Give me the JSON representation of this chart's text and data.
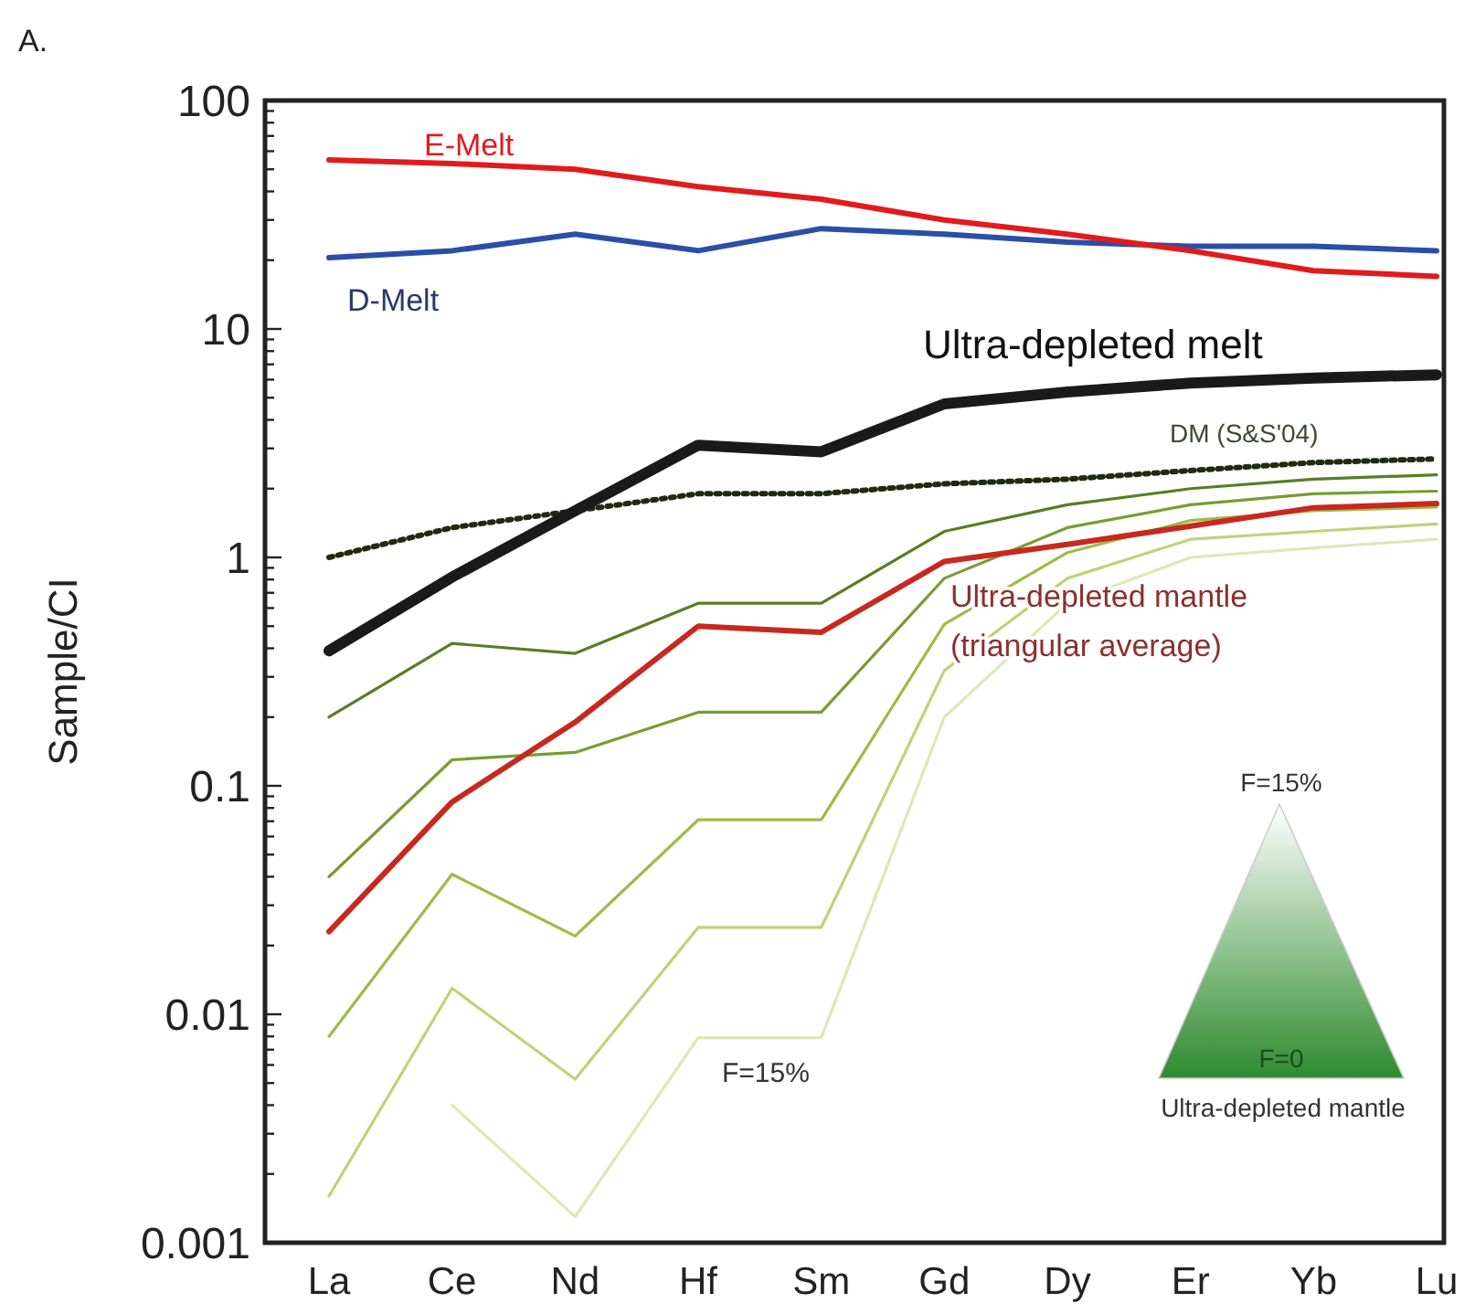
{
  "chart_data": {
    "type": "line",
    "title": "A.",
    "ylabel": "Sample/CI",
    "log": true,
    "categories": [
      "La",
      "Ce",
      "Nd",
      "Hf",
      "Sm",
      "Gd",
      "Dy",
      "Er",
      "Yb",
      "Lu"
    ],
    "ylim": [
      0.001,
      100
    ],
    "yticks": [
      0.001,
      {
        "value": 0.002,
        "label": null
      },
      {
        "value": 0.003,
        "label": null
      },
      {
        "value": 0.004,
        "label": null
      },
      {
        "value": 0.005,
        "label": null
      },
      {
        "value": 0.006,
        "label": null
      },
      {
        "value": 0.007,
        "label": null
      },
      {
        "value": 0.008,
        "label": null
      },
      {
        "value": 0.009,
        "label": null
      },
      0.01,
      {
        "value": 0.02,
        "label": null
      },
      {
        "value": 0.03,
        "label": null
      },
      {
        "value": 0.04,
        "label": null
      },
      {
        "value": 0.05,
        "label": null
      },
      {
        "value": 0.06,
        "label": null
      },
      {
        "value": 0.07,
        "label": null
      },
      {
        "value": 0.08,
        "label": null
      },
      {
        "value": 0.09,
        "label": null
      },
      0.1,
      {
        "value": 0.2,
        "label": null
      },
      {
        "value": 0.3,
        "label": null
      },
      {
        "value": 0.4,
        "label": null
      },
      {
        "value": 0.5,
        "label": null
      },
      {
        "value": 0.6,
        "label": null
      },
      {
        "value": 0.7,
        "label": null
      },
      {
        "value": 0.8,
        "label": null
      },
      {
        "value": 0.9,
        "label": null
      },
      1,
      {
        "value": 2,
        "label": null
      },
      {
        "value": 3,
        "label": null
      },
      {
        "value": 4,
        "label": null
      },
      {
        "value": 5,
        "label": null
      },
      {
        "value": 6,
        "label": null
      },
      {
        "value": 7,
        "label": null
      },
      {
        "value": 8,
        "label": null
      },
      {
        "value": 9,
        "label": null
      },
      10,
      {
        "value": 20,
        "label": null
      },
      {
        "value": 30,
        "label": null
      },
      {
        "value": 40,
        "label": null
      },
      {
        "value": 50,
        "label": null
      },
      {
        "value": 60,
        "label": null
      },
      {
        "value": 70,
        "label": null
      },
      {
        "value": 80,
        "label": null
      },
      {
        "value": 90,
        "label": null
      },
      100
    ],
    "marker": "none",
    "series": [
      {
        "name": "E-Melt",
        "color": "#e31a1c",
        "values": [
          55,
          53,
          50,
          42,
          37,
          30,
          26,
          22,
          18,
          17
        ]
      },
      {
        "name": "D-Melt",
        "color": "#2b4fa8",
        "values": [
          20.5,
          22,
          26,
          22,
          27.5,
          26,
          24,
          23,
          23,
          22
        ]
      },
      {
        "name": "Ultra-depleted melt",
        "color": "#1a1a1a",
        "values": [
          0.39,
          0.82,
          1.6,
          3.1,
          2.9,
          4.7,
          5.3,
          5.8,
          6.1,
          6.3
        ]
      },
      {
        "name": "DM (S&S'04)",
        "color": "#1f2a12",
        "line_style": "dotted",
        "values": [
          1.0,
          1.35,
          1.6,
          1.9,
          1.9,
          2.1,
          2.2,
          2.4,
          2.6,
          2.7
        ]
      },
      {
        "name": "Ultra-depleted mantle (triangular average)",
        "color": "#c8281e",
        "values": [
          0.023,
          0.085,
          0.19,
          0.5,
          0.47,
          0.96,
          1.14,
          1.37,
          1.65,
          1.72
        ]
      },
      {
        "color": "#5a7d22",
        "values": [
          0.2,
          0.42,
          0.38,
          0.63,
          0.63,
          1.3,
          1.7,
          2.0,
          2.2,
          2.3
        ]
      },
      {
        "color": "#7a9c30",
        "values": [
          0.04,
          0.13,
          0.14,
          0.21,
          0.21,
          0.81,
          1.35,
          1.7,
          1.9,
          1.95
        ]
      },
      {
        "color": "#9dbb48",
        "values": [
          0.008,
          0.041,
          0.022,
          0.071,
          0.071,
          0.51,
          1.05,
          1.45,
          1.6,
          1.66
        ]
      },
      {
        "color": "#bdd378",
        "values": [
          0.0016,
          0.013,
          0.0052,
          0.024,
          0.024,
          0.32,
          0.81,
          1.2,
          1.3,
          1.4
        ]
      },
      {
        "color": "#dde8b8",
        "values": [
          null,
          0.004,
          0.0013,
          0.0079,
          0.0079,
          0.2,
          0.63,
          1.0,
          1.1,
          1.2
        ]
      }
    ],
    "annotations": [
      "F=15%",
      "F=0",
      "Ultra-depleted mantle",
      "F=15%"
    ]
  }
}
